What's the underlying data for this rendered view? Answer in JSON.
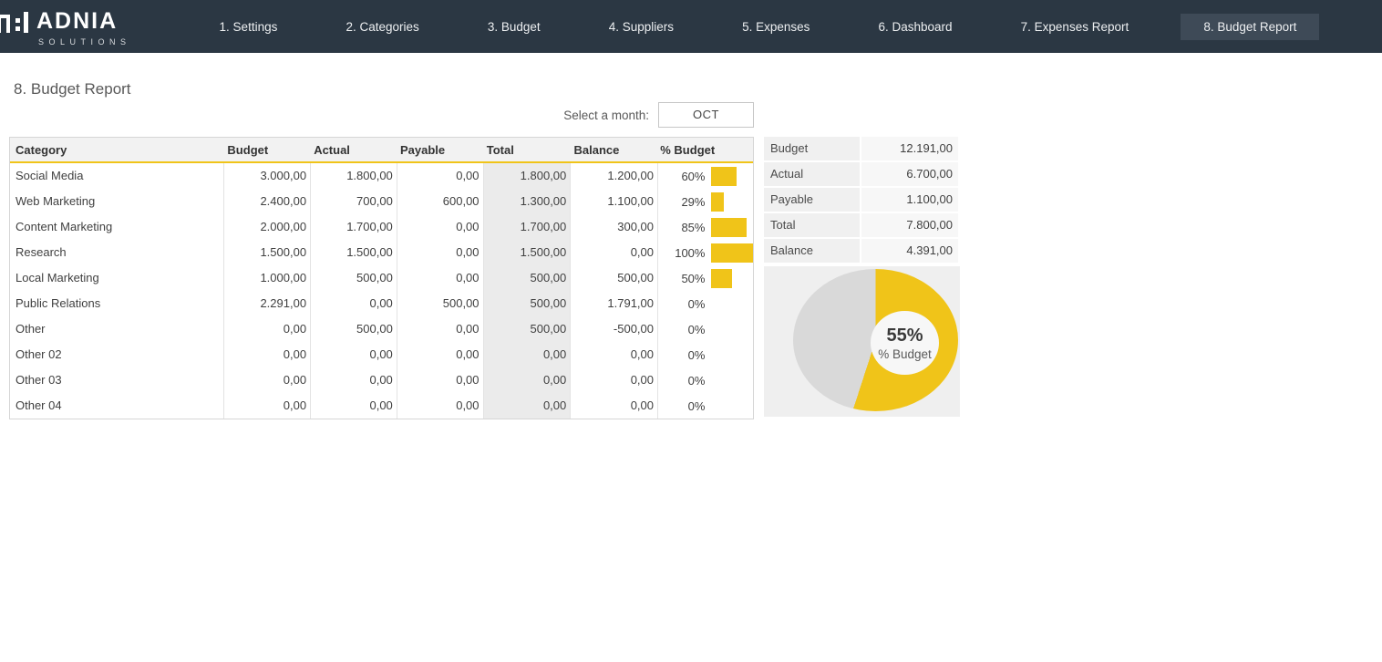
{
  "colors": {
    "accent_yellow": "#F0C419",
    "donut_gray": "#D9D9D9",
    "navbar_bg": "#2B3743",
    "active_tab_bg": "#3E4A57"
  },
  "nav": {
    "logo": {
      "name": "ADNIA",
      "sub": "SOLUTIONS"
    },
    "items": [
      {
        "label": "1. Settings",
        "active": false
      },
      {
        "label": "2. Categories",
        "active": false
      },
      {
        "label": "3. Budget",
        "active": false
      },
      {
        "label": "4. Suppliers",
        "active": false
      },
      {
        "label": "5. Expenses",
        "active": false
      },
      {
        "label": "6. Dashboard",
        "active": false
      },
      {
        "label": "7. Expenses Report",
        "active": false
      },
      {
        "label": "8. Budget Report",
        "active": true
      }
    ]
  },
  "page": {
    "title": "8. Budget Report"
  },
  "month_selector": {
    "label": "Select a month:",
    "value": "OCT"
  },
  "table": {
    "columns": [
      "Category",
      "Budget",
      "Actual",
      "Payable",
      "Total",
      "Balance",
      "% Budget"
    ],
    "rows": [
      {
        "category": "Social Media",
        "budget": "3.000,00",
        "actual": "1.800,00",
        "payable": "0,00",
        "total": "1.800,00",
        "balance": "1.200,00",
        "pct": "60%",
        "pct_value": 60
      },
      {
        "category": "Web Marketing",
        "budget": "2.400,00",
        "actual": "700,00",
        "payable": "600,00",
        "total": "1.300,00",
        "balance": "1.100,00",
        "pct": "29%",
        "pct_value": 29
      },
      {
        "category": "Content Marketing",
        "budget": "2.000,00",
        "actual": "1.700,00",
        "payable": "0,00",
        "total": "1.700,00",
        "balance": "300,00",
        "pct": "85%",
        "pct_value": 85
      },
      {
        "category": "Research",
        "budget": "1.500,00",
        "actual": "1.500,00",
        "payable": "0,00",
        "total": "1.500,00",
        "balance": "0,00",
        "pct": "100%",
        "pct_value": 100
      },
      {
        "category": "Local Marketing",
        "budget": "1.000,00",
        "actual": "500,00",
        "payable": "0,00",
        "total": "500,00",
        "balance": "500,00",
        "pct": "50%",
        "pct_value": 50
      },
      {
        "category": "Public Relations",
        "budget": "2.291,00",
        "actual": "0,00",
        "payable": "500,00",
        "total": "500,00",
        "balance": "1.791,00",
        "pct": "0%",
        "pct_value": 0
      },
      {
        "category": "Other",
        "budget": "0,00",
        "actual": "500,00",
        "payable": "0,00",
        "total": "500,00",
        "balance": "-500,00",
        "pct": "0%",
        "pct_value": 0
      },
      {
        "category": "Other 02",
        "budget": "0,00",
        "actual": "0,00",
        "payable": "0,00",
        "total": "0,00",
        "balance": "0,00",
        "pct": "0%",
        "pct_value": 0
      },
      {
        "category": "Other 03",
        "budget": "0,00",
        "actual": "0,00",
        "payable": "0,00",
        "total": "0,00",
        "balance": "0,00",
        "pct": "0%",
        "pct_value": 0
      },
      {
        "category": "Other 04",
        "budget": "0,00",
        "actual": "0,00",
        "payable": "0,00",
        "total": "0,00",
        "balance": "0,00",
        "pct": "0%",
        "pct_value": 0
      }
    ]
  },
  "summary": {
    "rows": [
      {
        "label": "Budget",
        "value": "12.191,00"
      },
      {
        "label": "Actual",
        "value": "6.700,00"
      },
      {
        "label": "Payable",
        "value": "1.100,00"
      },
      {
        "label": "Total",
        "value": "7.800,00"
      },
      {
        "label": "Balance",
        "value": "4.391,00"
      }
    ]
  },
  "chart_data": {
    "type": "pie",
    "subtype": "donut",
    "title": "% Budget",
    "slices": [
      {
        "label": "% Budget used",
        "value": 55,
        "color": "#F0C419"
      },
      {
        "label": "Remaining",
        "value": 45,
        "color": "#D9D9D9"
      }
    ],
    "center_label": "55%",
    "center_sublabel": "% Budget",
    "legend": "none",
    "start_angle": 0,
    "direction": "clockwise"
  }
}
